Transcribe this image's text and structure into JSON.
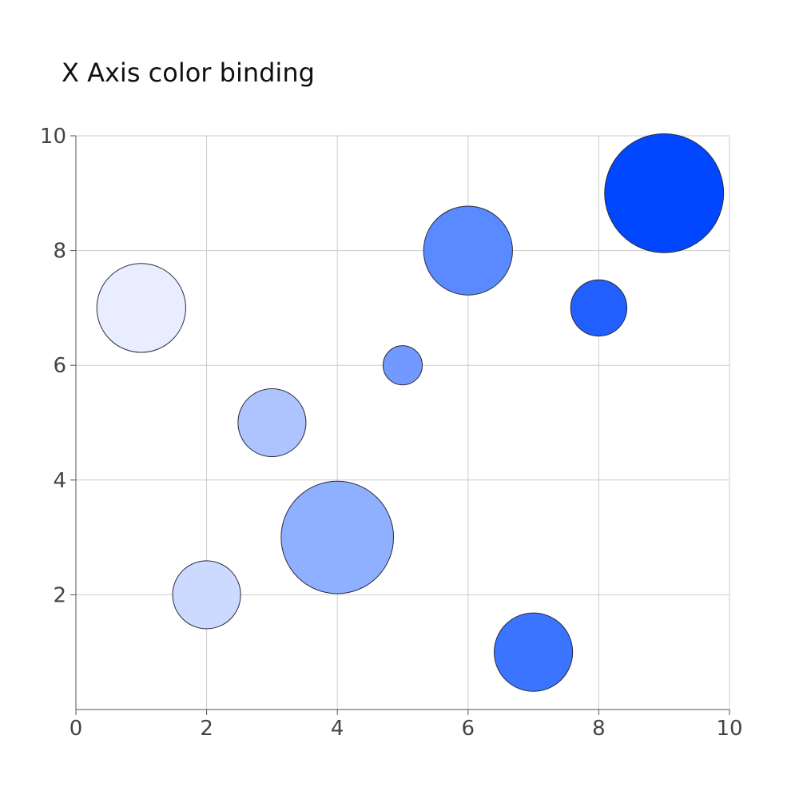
{
  "chart_data": {
    "type": "scatter",
    "title": "X Axis color binding",
    "xlabel": "",
    "ylabel": "",
    "xlim": [
      0,
      10
    ],
    "ylim": [
      0,
      10
    ],
    "x_ticks": [
      "0",
      "2",
      "4",
      "6",
      "8",
      "10"
    ],
    "y_ticks": [
      "2",
      "4",
      "6",
      "8",
      "10"
    ],
    "grid": true,
    "color_binding": "x",
    "points": [
      {
        "x": 1,
        "y": 7,
        "size": 6.8,
        "color": "#e8edff"
      },
      {
        "x": 2,
        "y": 2,
        "size": 5.2,
        "color": "#ccdaff"
      },
      {
        "x": 3,
        "y": 5,
        "size": 5.2,
        "color": "#adc4ff"
      },
      {
        "x": 4,
        "y": 3,
        "size": 8.6,
        "color": "#8fafff"
      },
      {
        "x": 5,
        "y": 6,
        "size": 3.0,
        "color": "#7199ff"
      },
      {
        "x": 6,
        "y": 8,
        "size": 6.8,
        "color": "#5a8aff"
      },
      {
        "x": 7,
        "y": 1,
        "size": 6.0,
        "color": "#3b74ff"
      },
      {
        "x": 8,
        "y": 7,
        "size": 4.3,
        "color": "#2160ff"
      },
      {
        "x": 9,
        "y": 9,
        "size": 9.1,
        "color": "#0047ff"
      }
    ]
  }
}
